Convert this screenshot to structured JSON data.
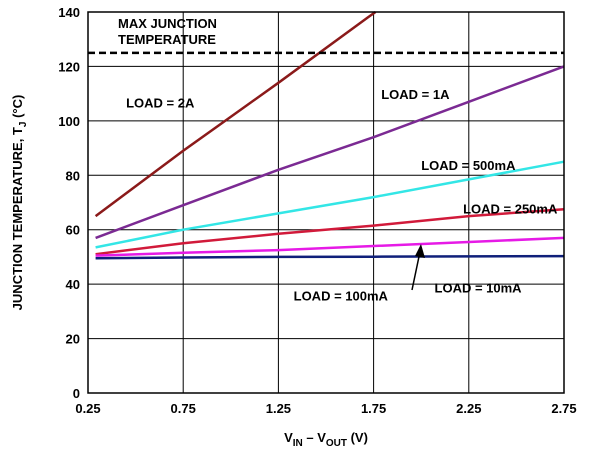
{
  "chart_data": {
    "type": "line",
    "xlabel_main": "V",
    "xlabel_sub1": "IN",
    "xlabel_mid": " – V",
    "xlabel_sub2": "OUT",
    "xlabel_unit": " (V)",
    "ylabel_main": "JUNCTION TEMPERATURE, T",
    "ylabel_sub": "J",
    "ylabel_unit": " (°C)",
    "xlim": [
      0.25,
      2.75
    ],
    "ylim": [
      0,
      140
    ],
    "x_ticks": [
      0.25,
      0.75,
      1.25,
      1.75,
      2.25,
      2.75
    ],
    "x_tick_labels": [
      "0.25",
      "0.75",
      "1.25",
      "1.75",
      "2.25",
      "2.75"
    ],
    "y_ticks": [
      0,
      20,
      40,
      60,
      80,
      100,
      120,
      140
    ],
    "y_tick_labels": [
      "0",
      "20",
      "40",
      "60",
      "80",
      "100",
      "120",
      "140"
    ],
    "grid": true,
    "max_junction": {
      "value": 125,
      "label_line1": "MAX JUNCTION",
      "label_line2": "TEMPERATURE",
      "color": "#000000"
    },
    "series": [
      {
        "name": "LOAD = 2A",
        "color": "#8b1a1a",
        "x": [
          0.29,
          0.75,
          1.25,
          1.72,
          1.76
        ],
        "y": [
          65,
          89,
          114,
          138,
          140
        ]
      },
      {
        "name": "LOAD = 1A",
        "color": "#7b2a93",
        "x": [
          0.29,
          0.75,
          1.25,
          1.75,
          2.25,
          2.75
        ],
        "y": [
          57,
          69,
          82,
          94,
          107,
          120
        ]
      },
      {
        "name": "LOAD = 500mA",
        "color": "#33e6e6",
        "x": [
          0.29,
          0.75,
          1.25,
          1.75,
          2.25,
          2.75
        ],
        "y": [
          53.5,
          60,
          66,
          72,
          78.5,
          85
        ]
      },
      {
        "name": "LOAD = 250mA",
        "color": "#d11a3a",
        "x": [
          0.29,
          0.75,
          1.25,
          1.75,
          2.25,
          2.75
        ],
        "y": [
          51,
          55,
          58.5,
          61.5,
          65,
          67.5
        ]
      },
      {
        "name": "LOAD = 100mA",
        "color": "#e61ae6",
        "x": [
          0.29,
          0.75,
          1.25,
          1.75,
          2.25,
          2.75
        ],
        "y": [
          50.5,
          51.5,
          52.5,
          54,
          55.5,
          57
        ]
      },
      {
        "name": "LOAD = 10mA",
        "color": "#0f1f7a",
        "x": [
          0.29,
          0.75,
          1.25,
          1.75,
          2.25,
          2.75
        ],
        "y": [
          49.5,
          49.8,
          50,
          50.1,
          50.2,
          50.3
        ]
      }
    ],
    "annotations": [
      {
        "text": "LOAD = 2A",
        "x": 0.45,
        "y": 105
      },
      {
        "text": "LOAD = 1A",
        "x": 1.79,
        "y": 108
      },
      {
        "text": "LOAD = 500mA",
        "x": 2.0,
        "y": 82
      },
      {
        "text": "LOAD = 250mA",
        "x": 2.22,
        "y": 66
      },
      {
        "text": "LOAD = 100mA",
        "x": 1.33,
        "y": 34
      },
      {
        "text": "LOAD = 10mA",
        "x": 2.07,
        "y": 37
      }
    ]
  }
}
